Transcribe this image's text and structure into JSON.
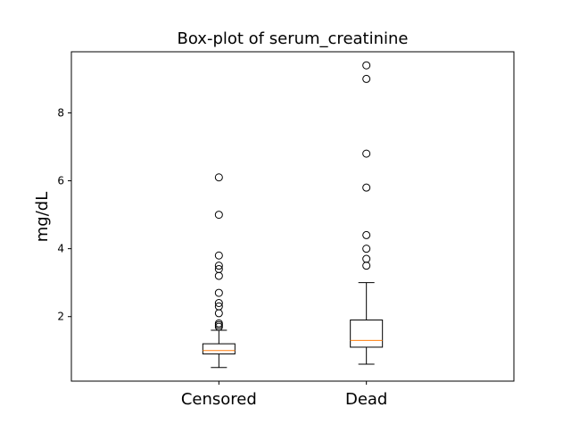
{
  "chart_data": {
    "type": "box",
    "title": "Box-plot of serum_creatinine",
    "xlabel": "",
    "ylabel": "mg/dL",
    "ylim": [
      0.1,
      9.8
    ],
    "yticks": [
      2,
      4,
      6,
      8
    ],
    "grid": false,
    "categories": [
      "Censored",
      "Dead"
    ],
    "boxes": [
      {
        "category": "Censored",
        "whisker_low": 0.5,
        "q1": 0.9,
        "median": 1.0,
        "q3": 1.2,
        "whisker_high": 1.6,
        "outliers": [
          1.7,
          1.75,
          1.8,
          2.1,
          2.3,
          2.4,
          2.7,
          3.2,
          3.4,
          3.5,
          3.8,
          5.0,
          6.1
        ]
      },
      {
        "category": "Dead",
        "whisker_low": 0.6,
        "q1": 1.1,
        "median": 1.3,
        "q3": 1.9,
        "whisker_high": 3.0,
        "outliers": [
          3.5,
          3.7,
          4.0,
          4.4,
          5.8,
          6.8,
          9.0,
          9.4
        ]
      }
    ],
    "colors": {
      "box": "#000000",
      "median": "#ff7f0e",
      "outlier": "#000000",
      "axes": "#000000"
    }
  }
}
